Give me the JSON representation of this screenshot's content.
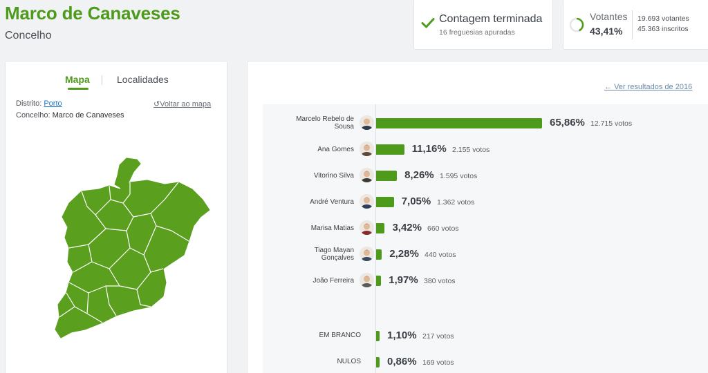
{
  "header": {
    "title": "Marco de Canaveses",
    "subtitle": "Concelho"
  },
  "status": {
    "title": "Contagem terminada",
    "subtitle": "16 freguesias apuradas",
    "icon": "check-icon"
  },
  "voters": {
    "label": "Votantes",
    "percent": "43,41%",
    "percent_value": 43.41,
    "voters_line": "19.693 votantes",
    "registered_line": "45.363 inscritos"
  },
  "map_panel": {
    "tabs": [
      {
        "label": "Mapa",
        "active": true
      },
      {
        "label": "Localidades",
        "active": false
      }
    ],
    "district_label": "Distrito:",
    "district_value": "Porto",
    "county_label": "Concelho:",
    "county_value": "Marco de Canaveses",
    "back_link": "Voltar ao mapa",
    "map_color": "#5aa01e"
  },
  "results": {
    "prev_link": "Ver resultados de 2016",
    "candidates": [
      {
        "name_line1": "Marcelo Rebelo de",
        "name_line2": "Sousa",
        "pct": "65,86%",
        "pct_value": 65.86,
        "votes": "12.715 votos"
      },
      {
        "name_line1": "Ana Gomes",
        "name_line2": "",
        "pct": "11,16%",
        "pct_value": 11.16,
        "votes": "2.155 votos"
      },
      {
        "name_line1": "Vitorino Silva",
        "name_line2": "",
        "pct": "8,26%",
        "pct_value": 8.26,
        "votes": "1.595 votos"
      },
      {
        "name_line1": "André Ventura",
        "name_line2": "",
        "pct": "7,05%",
        "pct_value": 7.05,
        "votes": "1.362 votos"
      },
      {
        "name_line1": "Marisa Matias",
        "name_line2": "",
        "pct": "3,42%",
        "pct_value": 3.42,
        "votes": "660 votos"
      },
      {
        "name_line1": "Tiago Mayan",
        "name_line2": "Gonçalves",
        "pct": "2,28%",
        "pct_value": 2.28,
        "votes": "440 votos"
      },
      {
        "name_line1": "João Ferreira",
        "name_line2": "",
        "pct": "1,97%",
        "pct_value": 1.97,
        "votes": "380 votos"
      }
    ],
    "special": [
      {
        "label": "EM BRANCO",
        "pct": "1,10%",
        "pct_value": 1.1,
        "votes": "217 votos"
      },
      {
        "label": "NULOS",
        "pct": "0,86%",
        "pct_value": 0.86,
        "votes": "169 votos"
      }
    ],
    "bar_color": "#4e9a1b"
  }
}
